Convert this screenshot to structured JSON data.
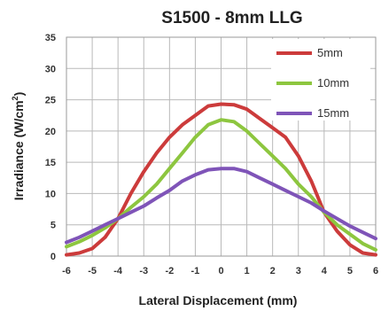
{
  "chart_data": {
    "type": "line",
    "title": "S1500 - 8mm LLG",
    "xlabel": "Lateral Displacement (mm)",
    "ylabel_main": "Irradiance (W/cm",
    "ylabel_sup": "2",
    "ylabel_end": ")",
    "xlim": [
      -6,
      6
    ],
    "ylim": [
      0,
      35
    ],
    "xticks": [
      "-6",
      "-5",
      "-4",
      "-3",
      "-2",
      "-1",
      "0",
      "1",
      "2",
      "3",
      "4",
      "5",
      "6"
    ],
    "yticks": [
      "0",
      "5",
      "10",
      "15",
      "20",
      "25",
      "30",
      "35"
    ],
    "grid": true,
    "legend_position": "top-right",
    "series": [
      {
        "name": "5mm",
        "color": "#cc3b3b",
        "points": [
          [
            -6,
            0.2
          ],
          [
            -5.5,
            0.5
          ],
          [
            -5,
            1.2
          ],
          [
            -4.5,
            3
          ],
          [
            -4,
            6
          ],
          [
            -3.5,
            10
          ],
          [
            -3,
            13.5
          ],
          [
            -2.5,
            16.5
          ],
          [
            -2,
            19
          ],
          [
            -1.5,
            21
          ],
          [
            -1,
            22.5
          ],
          [
            -0.5,
            24
          ],
          [
            0,
            24.3
          ],
          [
            0.5,
            24.2
          ],
          [
            1,
            23.5
          ],
          [
            1.5,
            22
          ],
          [
            2,
            20.5
          ],
          [
            2.5,
            19
          ],
          [
            3,
            16
          ],
          [
            3.5,
            12
          ],
          [
            4,
            7
          ],
          [
            4.5,
            4
          ],
          [
            5,
            1.8
          ],
          [
            5.5,
            0.5
          ],
          [
            6,
            0.2
          ]
        ]
      },
      {
        "name": "10mm",
        "color": "#8dc63f",
        "points": [
          [
            -6,
            1.5
          ],
          [
            -5.5,
            2.3
          ],
          [
            -5,
            3.3
          ],
          [
            -4.5,
            4.5
          ],
          [
            -4,
            6
          ],
          [
            -3.5,
            7.8
          ],
          [
            -3,
            9.5
          ],
          [
            -2.5,
            11.5
          ],
          [
            -2,
            14
          ],
          [
            -1.5,
            16.5
          ],
          [
            -1,
            19
          ],
          [
            -0.5,
            21
          ],
          [
            0,
            21.8
          ],
          [
            0.5,
            21.5
          ],
          [
            1,
            20
          ],
          [
            1.5,
            18
          ],
          [
            2,
            16
          ],
          [
            2.5,
            14
          ],
          [
            3,
            11.5
          ],
          [
            3.5,
            9.5
          ],
          [
            4,
            7
          ],
          [
            4.5,
            5
          ],
          [
            5,
            3.5
          ],
          [
            5.5,
            2
          ],
          [
            6,
            1
          ]
        ]
      },
      {
        "name": "15mm",
        "color": "#7f54b8",
        "points": [
          [
            -6,
            2.2
          ],
          [
            -5.5,
            3
          ],
          [
            -5,
            4
          ],
          [
            -4.5,
            5
          ],
          [
            -4,
            6
          ],
          [
            -3.5,
            7
          ],
          [
            -3,
            8
          ],
          [
            -2.5,
            9.3
          ],
          [
            -2,
            10.5
          ],
          [
            -1.5,
            12
          ],
          [
            -1,
            13
          ],
          [
            -0.5,
            13.8
          ],
          [
            0,
            14
          ],
          [
            0.5,
            14
          ],
          [
            1,
            13.5
          ],
          [
            1.5,
            12.5
          ],
          [
            2,
            11.5
          ],
          [
            2.5,
            10.5
          ],
          [
            3,
            9.5
          ],
          [
            3.5,
            8.5
          ],
          [
            4,
            7.2
          ],
          [
            4.5,
            6
          ],
          [
            5,
            4.8
          ],
          [
            5.5,
            3.8
          ],
          [
            6,
            2.8
          ]
        ]
      }
    ]
  }
}
